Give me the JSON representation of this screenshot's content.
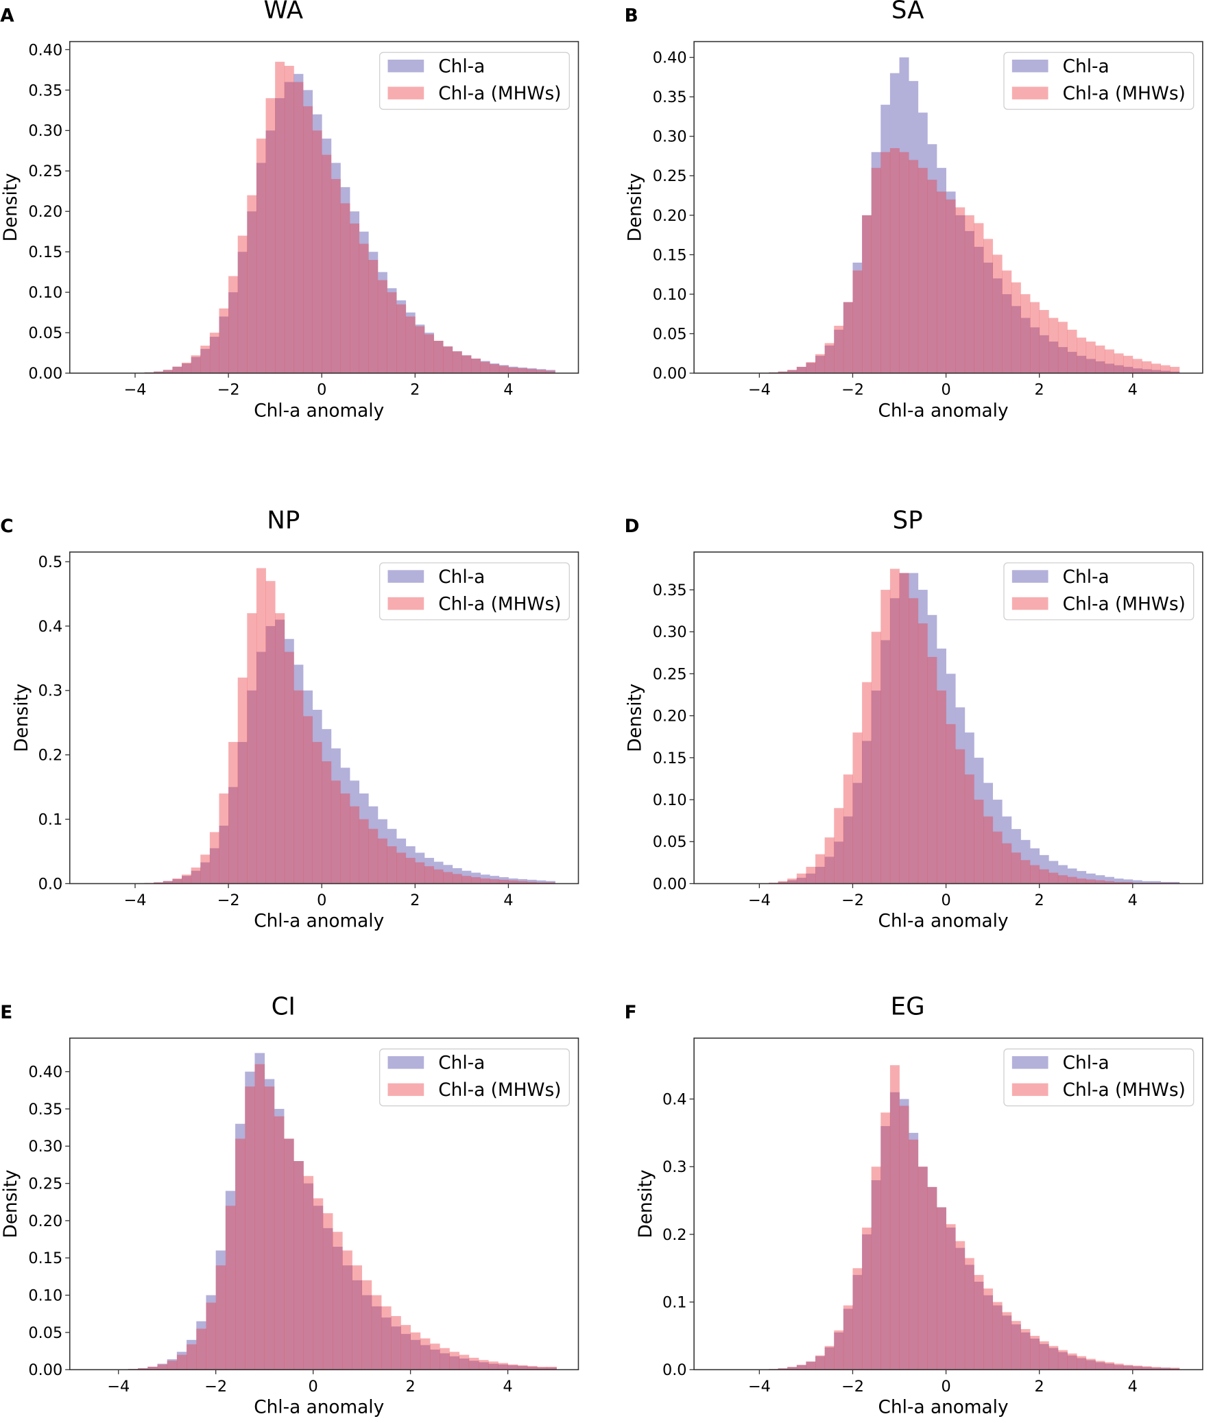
{
  "colors": {
    "chl": "#b3b0da",
    "mhw": "#eb393e",
    "axis": "#333333"
  },
  "legend": [
    "Chl-a",
    "Chl-a (MHWs)"
  ],
  "chart_data": [
    {
      "type": "bar",
      "panel": "A",
      "title": "WA",
      "xlabel": "Chl-a anomaly",
      "ylabel": "Density",
      "xlim": [
        -5.4,
        5.5
      ],
      "ylim": [
        0,
        0.41
      ],
      "xticks": [
        -4,
        -2,
        0,
        2,
        4
      ],
      "xtick_labels": [
        "−4",
        "−2",
        "0",
        "2",
        "4"
      ],
      "yticks": [
        0,
        0.05,
        0.1,
        0.15,
        0.2,
        0.25,
        0.3,
        0.35,
        0.4
      ],
      "ytick_labels": [
        "0.00",
        "0.05",
        "0.10",
        "0.15",
        "0.20",
        "0.25",
        "0.30",
        "0.35",
        "0.40"
      ],
      "bin_start": -5,
      "bin_width": 0.2,
      "legend_position": "top-right",
      "series": [
        {
          "name": "Chl-a",
          "values": [
            0,
            0,
            0,
            0,
            0,
            0,
            0.001,
            0.002,
            0.004,
            0.008,
            0.012,
            0.02,
            0.03,
            0.045,
            0.07,
            0.1,
            0.15,
            0.2,
            0.26,
            0.3,
            0.34,
            0.36,
            0.37,
            0.35,
            0.32,
            0.29,
            0.26,
            0.23,
            0.2,
            0.175,
            0.15,
            0.125,
            0.105,
            0.09,
            0.075,
            0.06,
            0.05,
            0.04,
            0.033,
            0.027,
            0.022,
            0.018,
            0.015,
            0.012,
            0.01,
            0.008,
            0.007,
            0.006,
            0.005,
            0.004
          ]
        },
        {
          "name": "Chl-a (MHWs)",
          "values": [
            0,
            0,
            0,
            0,
            0,
            0,
            0.001,
            0.002,
            0.004,
            0.008,
            0.013,
            0.022,
            0.034,
            0.05,
            0.08,
            0.12,
            0.17,
            0.22,
            0.29,
            0.34,
            0.385,
            0.38,
            0.36,
            0.33,
            0.3,
            0.27,
            0.24,
            0.21,
            0.185,
            0.16,
            0.14,
            0.115,
            0.1,
            0.085,
            0.07,
            0.058,
            0.048,
            0.04,
            0.033,
            0.027,
            0.022,
            0.018,
            0.014,
            0.011,
            0.009,
            0.007,
            0.006,
            0.005,
            0.004,
            0.003
          ]
        }
      ]
    },
    {
      "type": "bar",
      "panel": "B",
      "title": "SA",
      "xlabel": "Chl-a anomaly",
      "ylabel": "Density",
      "xlim": [
        -5.4,
        5.5
      ],
      "ylim": [
        0,
        0.42
      ],
      "xticks": [
        -4,
        -2,
        0,
        2,
        4
      ],
      "xtick_labels": [
        "−4",
        "−2",
        "0",
        "2",
        "4"
      ],
      "yticks": [
        0,
        0.05,
        0.1,
        0.15,
        0.2,
        0.25,
        0.3,
        0.35,
        0.4
      ],
      "ytick_labels": [
        "0.00",
        "0.05",
        "0.10",
        "0.15",
        "0.20",
        "0.25",
        "0.30",
        "0.35",
        "0.40"
      ],
      "bin_start": -5,
      "bin_width": 0.2,
      "legend_position": "top-right",
      "series": [
        {
          "name": "Chl-a",
          "values": [
            0,
            0,
            0,
            0,
            0,
            0,
            0.001,
            0.002,
            0.004,
            0.008,
            0.013,
            0.022,
            0.035,
            0.055,
            0.09,
            0.14,
            0.2,
            0.28,
            0.34,
            0.38,
            0.4,
            0.37,
            0.33,
            0.29,
            0.26,
            0.23,
            0.2,
            0.18,
            0.16,
            0.14,
            0.12,
            0.1,
            0.085,
            0.07,
            0.058,
            0.048,
            0.04,
            0.033,
            0.027,
            0.022,
            0.018,
            0.015,
            0.012,
            0.01,
            0.008,
            0.006,
            0.005,
            0.004,
            0.003,
            0.002
          ]
        },
        {
          "name": "Chl-a (MHWs)",
          "values": [
            0,
            0,
            0,
            0,
            0,
            0,
            0.001,
            0.002,
            0.004,
            0.008,
            0.014,
            0.024,
            0.038,
            0.06,
            0.09,
            0.13,
            0.2,
            0.26,
            0.28,
            0.285,
            0.28,
            0.27,
            0.26,
            0.245,
            0.23,
            0.22,
            0.21,
            0.2,
            0.19,
            0.17,
            0.15,
            0.13,
            0.115,
            0.1,
            0.09,
            0.08,
            0.07,
            0.065,
            0.055,
            0.045,
            0.04,
            0.035,
            0.03,
            0.025,
            0.022,
            0.018,
            0.015,
            0.012,
            0.01,
            0.008
          ]
        }
      ]
    },
    {
      "type": "bar",
      "panel": "C",
      "title": "NP",
      "xlabel": "Chl-a anomaly",
      "ylabel": "Density",
      "xlim": [
        -5.4,
        5.5
      ],
      "ylim": [
        0,
        0.515
      ],
      "xticks": [
        -4,
        -2,
        0,
        2,
        4
      ],
      "xtick_labels": [
        "−4",
        "−2",
        "0",
        "2",
        "4"
      ],
      "yticks": [
        0,
        0.1,
        0.2,
        0.3,
        0.4,
        0.5
      ],
      "ytick_labels": [
        "0.0",
        "0.1",
        "0.2",
        "0.3",
        "0.4",
        "0.5"
      ],
      "bin_start": -5,
      "bin_width": 0.2,
      "legend_position": "top-right",
      "series": [
        {
          "name": "Chl-a",
          "values": [
            0,
            0,
            0,
            0,
            0,
            0,
            0.001,
            0.002,
            0.004,
            0.007,
            0.012,
            0.02,
            0.033,
            0.055,
            0.09,
            0.15,
            0.22,
            0.3,
            0.36,
            0.4,
            0.41,
            0.38,
            0.34,
            0.3,
            0.27,
            0.24,
            0.21,
            0.18,
            0.16,
            0.14,
            0.12,
            0.1,
            0.085,
            0.07,
            0.058,
            0.048,
            0.04,
            0.034,
            0.029,
            0.024,
            0.02,
            0.017,
            0.014,
            0.012,
            0.01,
            0.008,
            0.007,
            0.006,
            0.005,
            0.004
          ]
        },
        {
          "name": "Chl-a (MHWs)",
          "values": [
            0,
            0,
            0,
            0,
            0,
            0,
            0.001,
            0.002,
            0.004,
            0.008,
            0.014,
            0.025,
            0.045,
            0.08,
            0.14,
            0.22,
            0.32,
            0.42,
            0.49,
            0.47,
            0.42,
            0.36,
            0.3,
            0.26,
            0.22,
            0.19,
            0.16,
            0.14,
            0.12,
            0.1,
            0.085,
            0.07,
            0.058,
            0.048,
            0.04,
            0.033,
            0.027,
            0.022,
            0.018,
            0.015,
            0.012,
            0.01,
            0.008,
            0.007,
            0.006,
            0.005,
            0.004,
            0.003,
            0.002,
            0.002
          ]
        }
      ]
    },
    {
      "type": "bar",
      "panel": "D",
      "title": "SP",
      "xlabel": "Chl-a anomaly",
      "ylabel": "Density",
      "xlim": [
        -5.4,
        5.5
      ],
      "ylim": [
        0,
        0.395
      ],
      "xticks": [
        -4,
        -2,
        0,
        2,
        4
      ],
      "xtick_labels": [
        "−4",
        "−2",
        "0",
        "2",
        "4"
      ],
      "yticks": [
        0,
        0.05,
        0.1,
        0.15,
        0.2,
        0.25,
        0.3,
        0.35
      ],
      "ytick_labels": [
        "0.00",
        "0.05",
        "0.10",
        "0.15",
        "0.20",
        "0.25",
        "0.30",
        "0.35"
      ],
      "bin_start": -5,
      "bin_width": 0.2,
      "legend_position": "top-right",
      "series": [
        {
          "name": "Chl-a",
          "values": [
            0,
            0,
            0,
            0,
            0,
            0,
            0.001,
            0.002,
            0.004,
            0.007,
            0.012,
            0.02,
            0.032,
            0.05,
            0.08,
            0.12,
            0.17,
            0.23,
            0.29,
            0.34,
            0.37,
            0.37,
            0.35,
            0.32,
            0.28,
            0.25,
            0.21,
            0.18,
            0.15,
            0.12,
            0.1,
            0.08,
            0.065,
            0.052,
            0.042,
            0.034,
            0.027,
            0.022,
            0.018,
            0.015,
            0.012,
            0.01,
            0.008,
            0.006,
            0.005,
            0.004,
            0.003,
            0.003,
            0.002,
            0.002
          ]
        },
        {
          "name": "Chl-a (MHWs)",
          "values": [
            0,
            0,
            0,
            0,
            0,
            0,
            0.001,
            0.003,
            0.006,
            0.012,
            0.02,
            0.035,
            0.055,
            0.09,
            0.13,
            0.18,
            0.24,
            0.3,
            0.35,
            0.375,
            0.37,
            0.34,
            0.31,
            0.27,
            0.23,
            0.19,
            0.16,
            0.13,
            0.1,
            0.08,
            0.062,
            0.048,
            0.037,
            0.028,
            0.022,
            0.017,
            0.013,
            0.01,
            0.008,
            0.006,
            0.005,
            0.004,
            0.003,
            0.002,
            0.002,
            0.001,
            0.001,
            0.001,
            0.001,
            0.001
          ]
        }
      ]
    },
    {
      "type": "bar",
      "panel": "E",
      "title": "CI",
      "xlabel": "Chl-a anomaly",
      "ylabel": "Density",
      "xlim": [
        -5.0,
        5.45
      ],
      "ylim": [
        0,
        0.445
      ],
      "xticks": [
        -4,
        -2,
        0,
        2,
        4
      ],
      "xtick_labels": [
        "−4",
        "−2",
        "0",
        "2",
        "4"
      ],
      "yticks": [
        0,
        0.05,
        0.1,
        0.15,
        0.2,
        0.25,
        0.3,
        0.35,
        0.4
      ],
      "ytick_labels": [
        "0.00",
        "0.05",
        "0.10",
        "0.15",
        "0.20",
        "0.25",
        "0.30",
        "0.35",
        "0.40"
      ],
      "bin_start": -5,
      "bin_width": 0.2,
      "legend_position": "top-right",
      "series": [
        {
          "name": "Chl-a",
          "values": [
            0,
            0,
            0,
            0,
            0,
            0,
            0.001,
            0.002,
            0.004,
            0.008,
            0.014,
            0.024,
            0.04,
            0.065,
            0.1,
            0.16,
            0.24,
            0.33,
            0.4,
            0.425,
            0.39,
            0.35,
            0.31,
            0.28,
            0.25,
            0.22,
            0.19,
            0.165,
            0.14,
            0.12,
            0.1,
            0.085,
            0.07,
            0.058,
            0.048,
            0.04,
            0.033,
            0.027,
            0.022,
            0.018,
            0.015,
            0.012,
            0.01,
            0.008,
            0.007,
            0.006,
            0.005,
            0.004,
            0.003,
            0.003
          ]
        },
        {
          "name": "Chl-a (MHWs)",
          "values": [
            0,
            0,
            0,
            0,
            0,
            0,
            0.001,
            0.002,
            0.004,
            0.007,
            0.012,
            0.02,
            0.034,
            0.055,
            0.09,
            0.14,
            0.22,
            0.31,
            0.38,
            0.41,
            0.38,
            0.34,
            0.31,
            0.28,
            0.26,
            0.23,
            0.21,
            0.185,
            0.16,
            0.14,
            0.12,
            0.1,
            0.085,
            0.072,
            0.06,
            0.05,
            0.042,
            0.035,
            0.029,
            0.024,
            0.02,
            0.016,
            0.013,
            0.011,
            0.009,
            0.007,
            0.006,
            0.005,
            0.004,
            0.004
          ]
        }
      ]
    },
    {
      "type": "bar",
      "panel": "F",
      "title": "EG",
      "xlabel": "Chl-a anomaly",
      "ylabel": "Density",
      "xlim": [
        -5.4,
        5.5
      ],
      "ylim": [
        0,
        0.49
      ],
      "xticks": [
        -4,
        -2,
        0,
        2,
        4
      ],
      "xtick_labels": [
        "−4",
        "−2",
        "0",
        "2",
        "4"
      ],
      "yticks": [
        0,
        0.1,
        0.2,
        0.3,
        0.4
      ],
      "ytick_labels": [
        "0.0",
        "0.1",
        "0.2",
        "0.3",
        "0.4"
      ],
      "bin_start": -5,
      "bin_width": 0.2,
      "legend_position": "top-right",
      "series": [
        {
          "name": "Chl-a",
          "values": [
            0,
            0,
            0,
            0,
            0,
            0,
            0.001,
            0.002,
            0.004,
            0.007,
            0.012,
            0.02,
            0.033,
            0.055,
            0.09,
            0.14,
            0.2,
            0.28,
            0.36,
            0.41,
            0.4,
            0.35,
            0.3,
            0.27,
            0.24,
            0.21,
            0.18,
            0.155,
            0.13,
            0.11,
            0.095,
            0.08,
            0.067,
            0.055,
            0.046,
            0.038,
            0.032,
            0.026,
            0.021,
            0.017,
            0.014,
            0.011,
            0.009,
            0.007,
            0.006,
            0.005,
            0.004,
            0.003,
            0.003,
            0.002
          ]
        },
        {
          "name": "Chl-a (MHWs)",
          "values": [
            0,
            0,
            0,
            0,
            0,
            0,
            0.001,
            0.002,
            0.004,
            0.007,
            0.012,
            0.021,
            0.035,
            0.058,
            0.095,
            0.15,
            0.21,
            0.3,
            0.38,
            0.45,
            0.39,
            0.34,
            0.3,
            0.27,
            0.24,
            0.215,
            0.19,
            0.165,
            0.14,
            0.12,
            0.1,
            0.085,
            0.072,
            0.06,
            0.05,
            0.042,
            0.035,
            0.029,
            0.024,
            0.02,
            0.016,
            0.013,
            0.011,
            0.009,
            0.007,
            0.006,
            0.005,
            0.004,
            0.003,
            0.003
          ]
        }
      ]
    }
  ]
}
